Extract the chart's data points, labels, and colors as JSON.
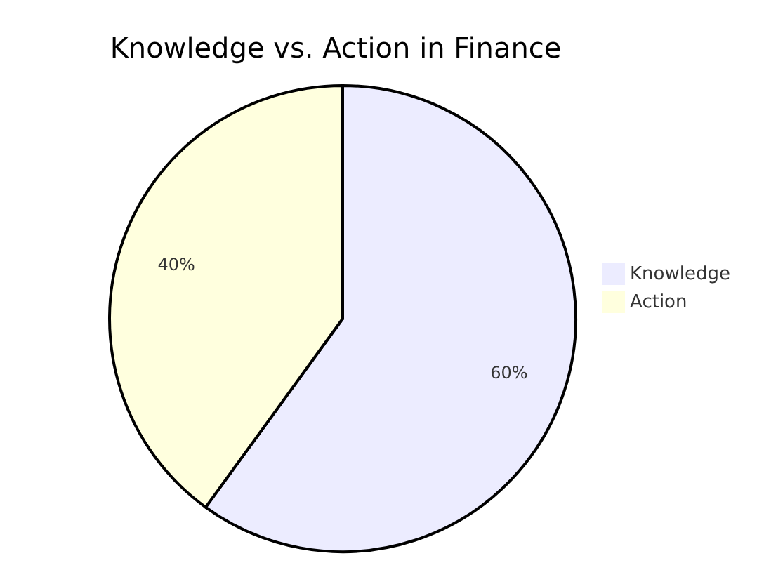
{
  "chart_data": {
    "type": "pie",
    "title": "Knowledge vs. Action in Finance",
    "categories": [
      "Knowledge",
      "Action"
    ],
    "values": [
      60,
      40
    ],
    "colors": [
      "#ececff",
      "#ffffde"
    ],
    "value_labels": [
      "60%",
      "40%"
    ],
    "legend": "right"
  }
}
